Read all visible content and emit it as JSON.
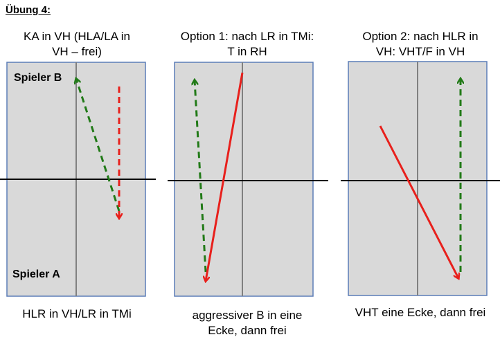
{
  "heading": "Übung 4:",
  "panels": [
    {
      "title_lines": [
        "KA in VH (HLA/LA in",
        "VH – frei)"
      ],
      "bottom_lines": [
        "HLR in VH/LR in TMi"
      ]
    },
    {
      "title_lines": [
        "Option 1: nach LR in TMi:",
        "T in RH"
      ],
      "bottom_lines": [
        "aggressiver B in eine",
        "Ecke, dann frei"
      ]
    },
    {
      "title_lines": [
        "Option 2: nach HLR in",
        "VH: VHT/F in VH"
      ],
      "bottom_lines": [
        "VHT eine Ecke, dann frei"
      ]
    }
  ],
  "players": {
    "top": "Spieler B",
    "bottom": "Spieler A"
  },
  "colors": {
    "table": "#d9d9d9",
    "border": "#5b7db7",
    "red": "#e8201c",
    "green": "#217a17"
  }
}
